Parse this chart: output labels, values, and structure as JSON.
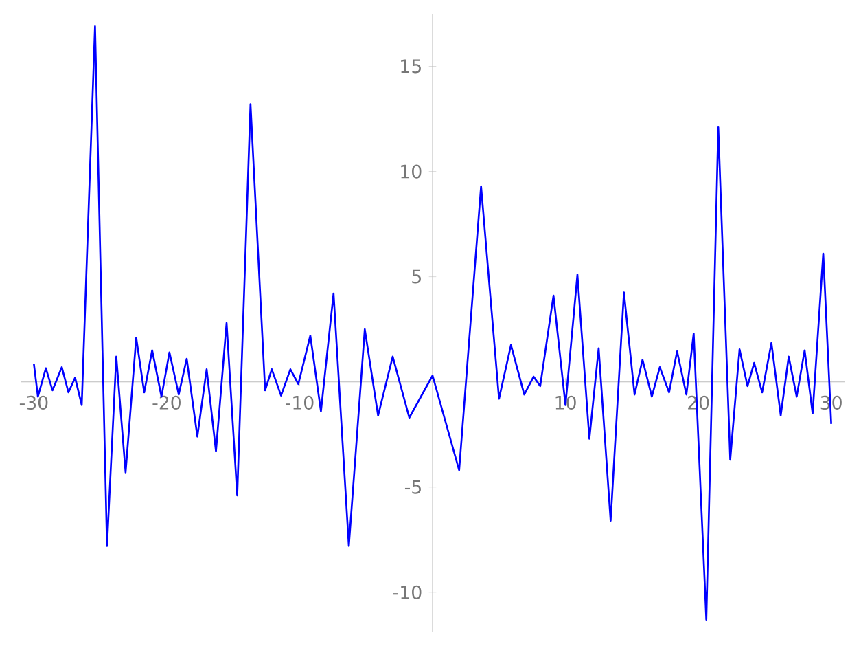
{
  "chart_data": {
    "type": "line",
    "color": "#0000ff",
    "line_style": "solid",
    "xlim": [
      -31,
      31
    ],
    "ylim": [
      -11.9,
      17.5
    ],
    "xticks": [
      -30,
      -20,
      -10,
      10,
      20,
      30
    ],
    "yticks": [
      -10,
      -5,
      5,
      10,
      15
    ],
    "x": [
      -30.0,
      -29.7,
      -29.1,
      -28.6,
      -27.9,
      -27.4,
      -26.9,
      -26.4,
      -25.4,
      -24.5,
      -23.8,
      -23.1,
      -22.3,
      -21.7,
      -21.1,
      -20.4,
      -19.8,
      -19.1,
      -18.5,
      -17.7,
      -17.0,
      -16.3,
      -15.5,
      -14.7,
      -13.7,
      -12.6,
      -12.1,
      -11.4,
      -10.7,
      -10.1,
      -9.2,
      -8.4,
      -7.45,
      -6.3,
      -5.1,
      -4.1,
      -3.0,
      -1.75,
      0.0,
      2.0,
      3.65,
      5.0,
      5.9,
      6.9,
      7.6,
      8.1,
      9.1,
      10.0,
      10.9,
      11.8,
      12.5,
      13.4,
      14.4,
      15.2,
      15.8,
      16.5,
      17.1,
      17.8,
      18.4,
      19.1,
      19.65,
      20.6,
      21.5,
      22.4,
      23.1,
      23.7,
      24.2,
      24.8,
      25.5,
      26.2,
      26.8,
      27.4,
      28.0,
      28.6,
      29.4,
      30.0
    ],
    "values": [
      0.85,
      -0.7,
      0.65,
      -0.4,
      0.7,
      -0.5,
      0.2,
      -1.1,
      16.9,
      -7.8,
      1.2,
      -4.3,
      2.1,
      -0.5,
      1.5,
      -0.7,
      1.4,
      -0.6,
      1.1,
      -2.6,
      0.6,
      -3.3,
      2.8,
      -5.4,
      13.2,
      -0.4,
      0.6,
      -0.65,
      0.6,
      -0.1,
      2.2,
      -1.4,
      4.2,
      -7.8,
      2.5,
      -1.6,
      1.2,
      -1.7,
      0.3,
      -4.2,
      9.3,
      -0.8,
      1.75,
      -0.6,
      0.25,
      -0.2,
      4.1,
      -1.1,
      5.1,
      -2.7,
      1.6,
      -6.6,
      4.25,
      -0.6,
      1.05,
      -0.7,
      0.7,
      -0.5,
      1.45,
      -0.6,
      2.3,
      -11.3,
      12.1,
      -3.7,
      1.55,
      -0.2,
      0.9,
      -0.5,
      1.85,
      -1.6,
      1.2,
      -0.7,
      1.5,
      -1.5,
      6.1,
      -2.0
    ]
  }
}
